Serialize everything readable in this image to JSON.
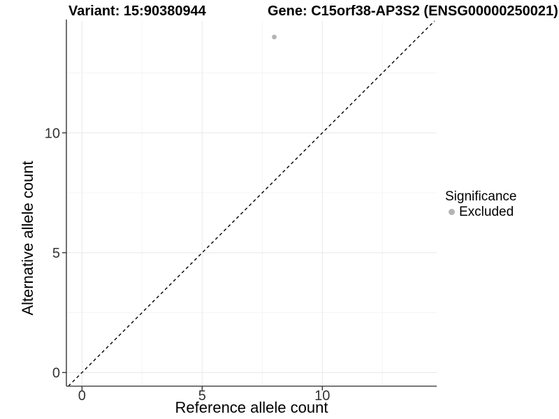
{
  "chart_data": {
    "type": "scatter",
    "titles": {
      "variant": "Variant: 15:90380944",
      "gene": "Gene: C15orf38-AP3S2 (ENSG00000250021)"
    },
    "xlabel": "Reference allele count",
    "ylabel": "Alternative allele count",
    "xlim": [
      -0.65,
      14.76
    ],
    "ylim": [
      -0.57,
      14.67
    ],
    "xticks": [
      0,
      5,
      10
    ],
    "yticks": [
      0,
      5,
      10
    ],
    "xminor": [
      2.5,
      7.5,
      12.5
    ],
    "yminor": [
      2.5,
      7.5,
      12.5
    ],
    "points": [
      {
        "x": 8,
        "y": 14,
        "significance": "Excluded"
      }
    ],
    "identity_line": {
      "slope": 1,
      "intercept": 0,
      "style": "dashed"
    },
    "legend": {
      "title": "Significance",
      "position": "right",
      "items": [
        {
          "label": "Excluded",
          "color": "#b4b4b4"
        }
      ]
    },
    "grid": true,
    "colors": {
      "point": "#b4b4b4",
      "axis_line": "#4d4d4d",
      "grid_major": "#e8e8e8",
      "grid_minor": "#f4f4f4",
      "abline": "#000000",
      "tick_text": "#333333",
      "background": "#ffffff"
    }
  }
}
